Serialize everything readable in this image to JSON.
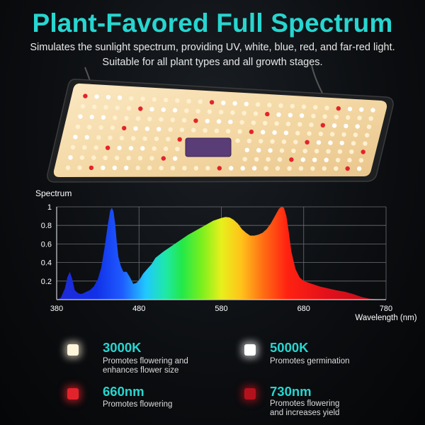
{
  "header": {
    "title": "Plant-Favored Full Spectrum",
    "subtitle": "Simulates the sunlight spectrum, providing UV, white, blue, red, and far-red light. Suitable for all plant types and all growth stages."
  },
  "colors": {
    "accent": "#27d6d0",
    "panel_warm": "#f6dfb2",
    "led_red": "#e3232b"
  },
  "chart_data": {
    "type": "area",
    "title": "Spectrum",
    "xlabel": "Wavelength (nm)",
    "ylabel": "",
    "xlim": [
      380,
      780
    ],
    "ylim": [
      0,
      1
    ],
    "xticks": [
      "380",
      "480",
      "580",
      "680",
      "780"
    ],
    "yticks": [
      "0.2",
      "0.4",
      "0.6",
      "0.8",
      "1"
    ],
    "grid": true,
    "series": [
      {
        "x": [
          380,
          385,
          390,
          393,
          396,
          399,
          402,
          406,
          410,
          415,
          420,
          425,
          430,
          434,
          438,
          442,
          445,
          447,
          449,
          451,
          453,
          455,
          458,
          461,
          465,
          469,
          473,
          477,
          481,
          485,
          490,
          495,
          500,
          510,
          520,
          530,
          540,
          550,
          560,
          570,
          580,
          585,
          590,
          595,
          600,
          605,
          610,
          615,
          620,
          625,
          630,
          635,
          640,
          645,
          650,
          653,
          656,
          659,
          662,
          665,
          670,
          675,
          680,
          690,
          700,
          710,
          720,
          730,
          740,
          750,
          760,
          770,
          780
        ],
        "y": [
          0.0,
          0.02,
          0.12,
          0.24,
          0.3,
          0.22,
          0.1,
          0.07,
          0.06,
          0.08,
          0.1,
          0.14,
          0.22,
          0.34,
          0.55,
          0.8,
          0.96,
          0.99,
          0.95,
          0.82,
          0.62,
          0.46,
          0.36,
          0.3,
          0.3,
          0.24,
          0.17,
          0.18,
          0.22,
          0.28,
          0.33,
          0.38,
          0.45,
          0.52,
          0.58,
          0.64,
          0.7,
          0.75,
          0.8,
          0.85,
          0.88,
          0.89,
          0.885,
          0.86,
          0.82,
          0.76,
          0.72,
          0.69,
          0.69,
          0.7,
          0.72,
          0.76,
          0.82,
          0.9,
          0.98,
          1.0,
          0.99,
          0.9,
          0.72,
          0.52,
          0.33,
          0.24,
          0.2,
          0.17,
          0.14,
          0.12,
          0.1,
          0.085,
          0.06,
          0.03,
          0.01,
          0.005,
          0.0
        ]
      }
    ]
  },
  "legend": [
    {
      "name": "3000K",
      "desc": "Promotes flowering and\nenhances flower size",
      "color": "#fff4da"
    },
    {
      "name": "5000K",
      "desc": "Promotes germination",
      "color": "#ffffff"
    },
    {
      "name": "660nm",
      "desc": "Promotes flowering",
      "color": "#e3232b"
    },
    {
      "name": "730nm",
      "desc": "Promotes flowering\nand increases yield",
      "color": "#b3121d"
    }
  ]
}
